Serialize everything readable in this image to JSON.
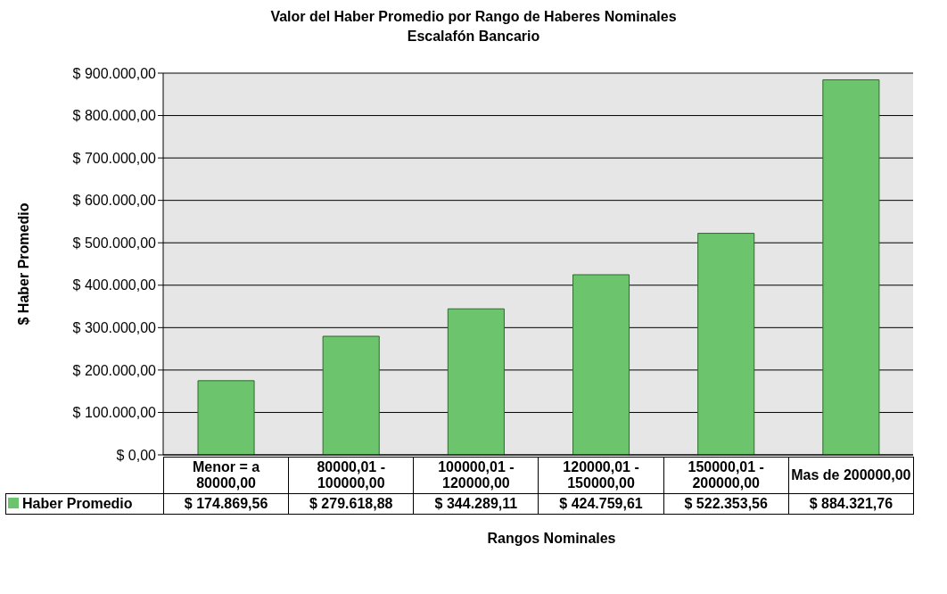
{
  "chart_data": {
    "type": "bar",
    "title": "Valor del Haber Promedio por Rango de Haberes Nominales",
    "subtitle": "Escalafón Bancario",
    "xlabel": "Rangos Nominales",
    "ylabel": "$ Haber Promedio",
    "categories": [
      "Menor = a 80000,00",
      "80000,01 - 100000,00",
      "100000,01 - 120000,00",
      "120000,01 - 150000,00",
      "150000,01 - 200000,00",
      "Mas de 200000,00"
    ],
    "series": [
      {
        "name": "Haber Promedio",
        "color": "#6cc46c",
        "values": [
          174869.56,
          279618.88,
          344289.11,
          424759.61,
          522353.56,
          884321.76
        ],
        "value_labels": [
          "$ 174.869,56",
          "$ 279.618,88",
          "$ 344.289,11",
          "$ 424.759,61",
          "$ 522.353,56",
          "$ 884.321,76"
        ]
      }
    ],
    "ylim": [
      0,
      900000
    ],
    "yticks": [
      {
        "value": 0,
        "label": "$ 0,00"
      },
      {
        "value": 100000,
        "label": "$ 100.000,00"
      },
      {
        "value": 200000,
        "label": "$ 200.000,00"
      },
      {
        "value": 300000,
        "label": "$ 300.000,00"
      },
      {
        "value": 400000,
        "label": "$ 400.000,00"
      },
      {
        "value": 500000,
        "label": "$ 500.000,00"
      },
      {
        "value": 600000,
        "label": "$ 600.000,00"
      },
      {
        "value": 700000,
        "label": "$ 700.000,00"
      },
      {
        "value": 800000,
        "label": "$ 800.000,00"
      },
      {
        "value": 900000,
        "label": "$ 900.000,00"
      }
    ],
    "grid": "y",
    "legend": "bottom"
  }
}
